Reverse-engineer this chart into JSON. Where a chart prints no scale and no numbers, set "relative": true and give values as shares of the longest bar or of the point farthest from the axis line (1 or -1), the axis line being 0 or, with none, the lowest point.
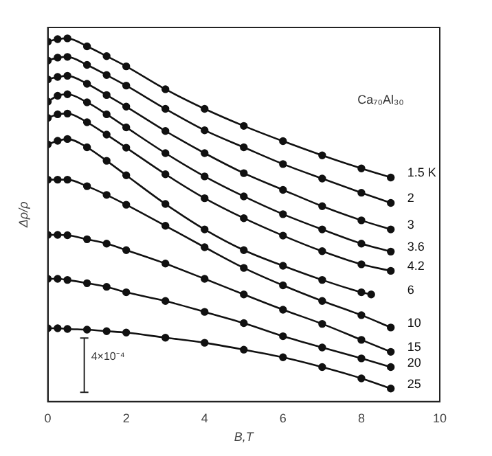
{
  "chart_data": {
    "type": "line",
    "xlabel": "B,T",
    "ylabel": "Δρ/ρ",
    "relative": true,
    "xlim": [
      0,
      10
    ],
    "xticks": [
      0,
      2,
      4,
      6,
      8,
      10
    ],
    "grid": false,
    "legend": false,
    "marker": "circle",
    "line_style": "solid",
    "annotations": [
      "Ca₇₀Al₃₀",
      "4×10⁻⁴"
    ],
    "x": [
      0,
      0.25,
      0.5,
      1,
      1.5,
      2,
      3,
      4,
      5,
      6,
      7,
      8,
      8.75
    ],
    "series": [
      {
        "name": "1.5 K",
        "color": "#111111",
        "values": [
          0.991,
          0.998,
          1,
          0.978,
          0.951,
          0.923,
          0.86,
          0.806,
          0.759,
          0.717,
          0.678,
          0.642,
          0.617
        ]
      },
      {
        "name": "2",
        "color": "#111111",
        "values": [
          0.939,
          0.947,
          0.949,
          0.927,
          0.899,
          0.87,
          0.806,
          0.747,
          0.7,
          0.654,
          0.614,
          0.575,
          0.547
        ]
      },
      {
        "name": "3",
        "color": "#111111",
        "values": [
          0.887,
          0.894,
          0.897,
          0.875,
          0.844,
          0.812,
          0.745,
          0.684,
          0.629,
          0.583,
          0.538,
          0.499,
          0.474
        ]
      },
      {
        "name": "3.6",
        "color": "#111111",
        "values": [
          0.826,
          0.842,
          0.846,
          0.824,
          0.791,
          0.755,
          0.684,
          0.62,
          0.565,
          0.516,
          0.474,
          0.435,
          0.413
        ]
      },
      {
        "name": "4.2",
        "color": "#111111",
        "values": [
          0.781,
          0.791,
          0.793,
          0.769,
          0.735,
          0.699,
          0.626,
          0.56,
          0.505,
          0.457,
          0.414,
          0.378,
          0.36
        ]
      },
      {
        "name": "6",
        "color": "#111111",
        "x": [
          0,
          0.25,
          0.5,
          1,
          1.5,
          2,
          3,
          4,
          5,
          6,
          7,
          8,
          8.25
        ],
        "values": [
          0.708,
          0.718,
          0.723,
          0.7,
          0.663,
          0.623,
          0.544,
          0.474,
          0.417,
          0.374,
          0.335,
          0.301,
          0.295
        ]
      },
      {
        "name": "10",
        "color": "#111111",
        "values": [
          0.611,
          0.611,
          0.611,
          0.593,
          0.569,
          0.542,
          0.484,
          0.425,
          0.368,
          0.32,
          0.277,
          0.238,
          0.204
        ]
      },
      {
        "name": "15",
        "color": "#111111",
        "values": [
          0.459,
          0.459,
          0.458,
          0.447,
          0.435,
          0.417,
          0.38,
          0.338,
          0.295,
          0.253,
          0.214,
          0.17,
          0.137
        ]
      },
      {
        "name": "20",
        "color": "#111111",
        "values": [
          0.338,
          0.338,
          0.335,
          0.326,
          0.316,
          0.301,
          0.277,
          0.247,
          0.216,
          0.18,
          0.149,
          0.119,
          0.095
        ]
      },
      {
        "name": "25",
        "color": "#111111",
        "values": [
          0.202,
          0.202,
          0.2,
          0.198,
          0.194,
          0.19,
          0.176,
          0.162,
          0.143,
          0.122,
          0.095,
          0.064,
          0.036
        ]
      }
    ]
  }
}
